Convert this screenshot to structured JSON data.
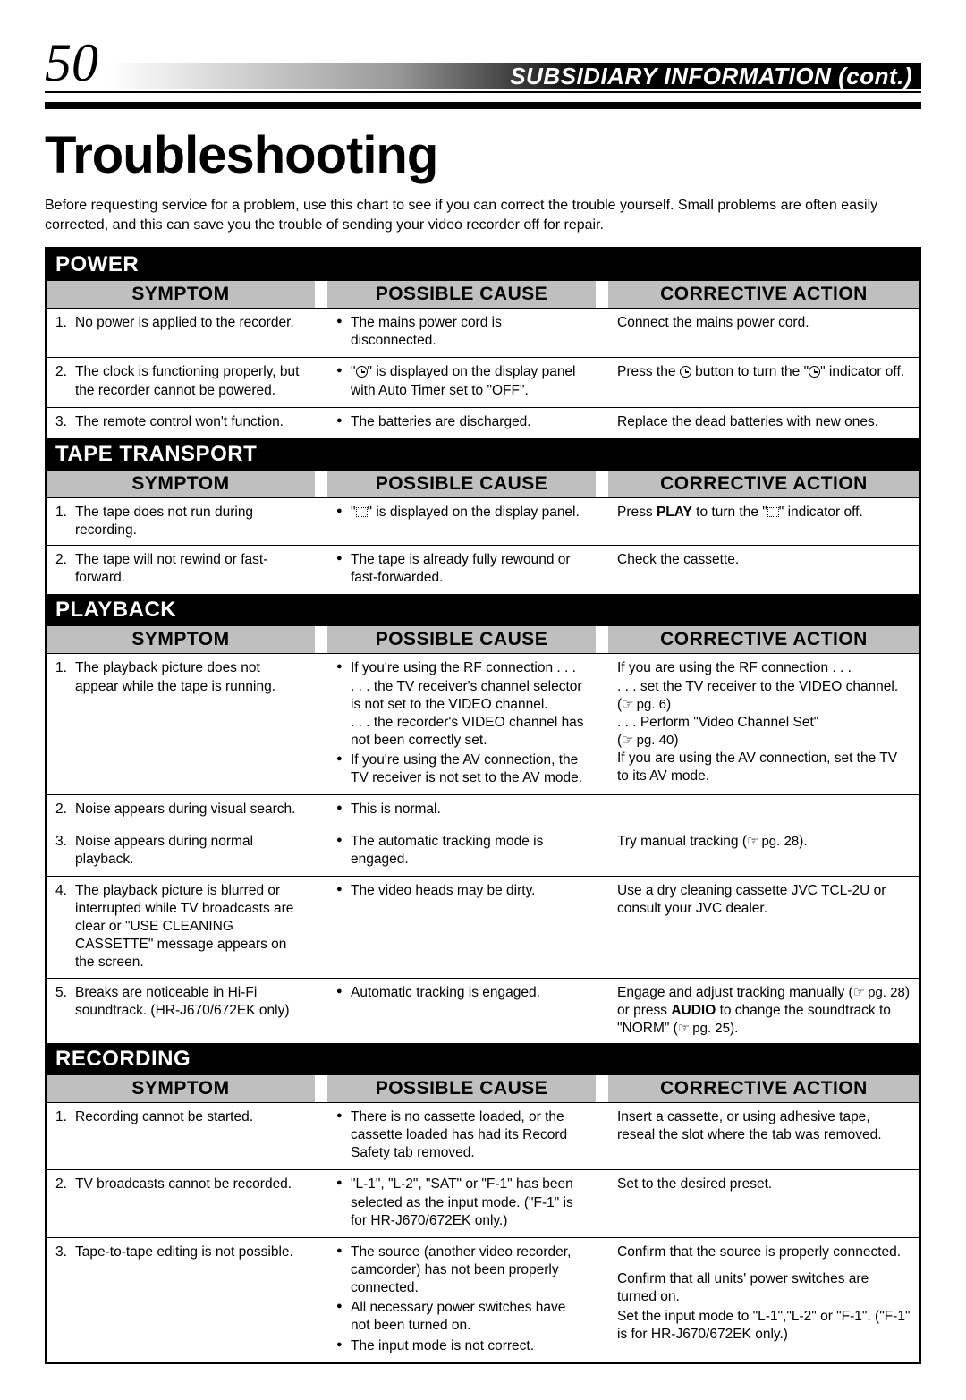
{
  "page_number": "50",
  "header_title": "SUBSIDIARY INFORMATION (cont.)",
  "main_title": "Troubleshooting",
  "intro": "Before requesting service for a problem, use this chart to see if you can correct the trouble yourself. Small problems are often easily corrected, and this can save you the trouble of sending your video recorder off for repair.",
  "col_labels": {
    "symptom": "SYMPTOM",
    "cause": "POSSIBLE CAUSE",
    "action": "CORRECTIVE ACTION"
  },
  "sections": {
    "power": {
      "title": "POWER",
      "rows": [
        {
          "num": "1.",
          "symptom": "No power is applied to the recorder.",
          "causes": [
            "The mains power cord is disconnected."
          ],
          "action_html": "Connect the mains power cord."
        },
        {
          "num": "2.",
          "symptom": "The clock is functioning properly, but the recorder cannot be powered.",
          "causes": [
            "\"{TIMER}\" is displayed on the display panel with Auto Timer set to \"OFF\"."
          ],
          "action_html": "Press the {TIMER} button to turn the \"{TIMER}\" indicator off."
        },
        {
          "num": "3.",
          "symptom": "The remote control won't function.",
          "causes": [
            "The batteries are discharged."
          ],
          "action_html": "Replace the dead batteries with new ones."
        }
      ]
    },
    "tape": {
      "title": "TAPE TRANSPORT",
      "rows": [
        {
          "num": "1.",
          "symptom": "The tape does not run during recording.",
          "causes": [
            "\"{PAUSE}\" is displayed on the display panel."
          ],
          "action_html": "Press <b>PLAY</b> to turn the \"{PAUSE}\" indicator off."
        },
        {
          "num": "2.",
          "symptom": "The tape will not rewind or fast-forward.",
          "causes": [
            "The tape is already fully rewound or fast-forwarded."
          ],
          "action_html": "Check the cassette."
        }
      ]
    },
    "playback": {
      "title": "PLAYBACK",
      "rows": [
        {
          "num": "1.",
          "symptom": "The playback picture does not appear while the tape is running.",
          "causes": [
            "If you're using the RF connection . . .\n. . . the TV receiver's channel selector is not set to the VIDEO channel.\n. . . the recorder's VIDEO channel has not been correctly set.",
            "If you're using the AV connection, the TV receiver is not set to the AV mode."
          ],
          "action_html": "If you are using the RF connection . . .<br>. . . set the TV receiver to the VIDEO channel. (<span class=\"pg-ref\">pg. 6</span>)<br>. . . Perform \"Video Channel Set\"<br>(<span class=\"pg-ref\">pg. 40</span>)<br>If you are using the AV connection, set the TV to its AV mode."
        },
        {
          "num": "2.",
          "symptom": "Noise appears during visual search.",
          "causes": [
            "This is normal."
          ],
          "action_html": ""
        },
        {
          "num": "3.",
          "symptom": "Noise appears during normal playback.",
          "causes": [
            "The automatic tracking mode is engaged."
          ],
          "action_html": "Try manual tracking (<span class=\"pg-ref\">pg. 28</span>)."
        },
        {
          "num": "4.",
          "symptom": "The playback picture is blurred or interrupted while TV broadcasts are clear or \"USE CLEANING CASSETTE\" message appears on the screen.",
          "causes": [
            "The video heads may be dirty."
          ],
          "action_html": "Use a dry cleaning cassette JVC TCL-2U or consult your JVC dealer."
        },
        {
          "num": "5.",
          "symptom": "Breaks are noticeable in Hi-Fi soundtrack. (HR-J670/672EK only)",
          "causes": [
            "Automatic tracking is engaged."
          ],
          "action_html": "Engage and adjust tracking manually (<span class=\"pg-ref\">pg. 28</span>) or press <b>AUDIO</b> to change the soundtrack to \"NORM\" (<span class=\"pg-ref\">pg. 25</span>)."
        }
      ]
    },
    "recording": {
      "title": "RECORDING",
      "rows": [
        {
          "num": "1.",
          "symptom": "Recording cannot be started.",
          "causes": [
            "There is no cassette loaded, or the cassette loaded has had its Record Safety tab removed."
          ],
          "action_html": "Insert a cassette, or using adhesive tape, reseal the slot where the tab was removed."
        },
        {
          "num": "2.",
          "symptom": "TV broadcasts cannot be recorded.",
          "causes": [
            "\"L-1\", \"L-2\", \"SAT\" or \"F-1\" has been selected as the input mode. (\"F-1\" is for HR-J670/672EK only.)"
          ],
          "action_html": "Set to the desired preset."
        },
        {
          "num": "3.",
          "symptom": "Tape-to-tape editing is not possible.",
          "causes": [
            "The source (another video recorder, camcorder) has not been properly connected.",
            "All necessary power switches have not been turned on.",
            "The input mode is not correct."
          ],
          "action_html": "<p>Confirm that the source is properly connected.</p><p style=\"margin-top:10px\">Confirm that all units' power switches are turned on.</p><p>Set the input mode to \"L-1\",\"L-2\" or \"F-1\". (\"F-1\" is for HR-J670/672EK only.)</p>"
        }
      ]
    }
  }
}
